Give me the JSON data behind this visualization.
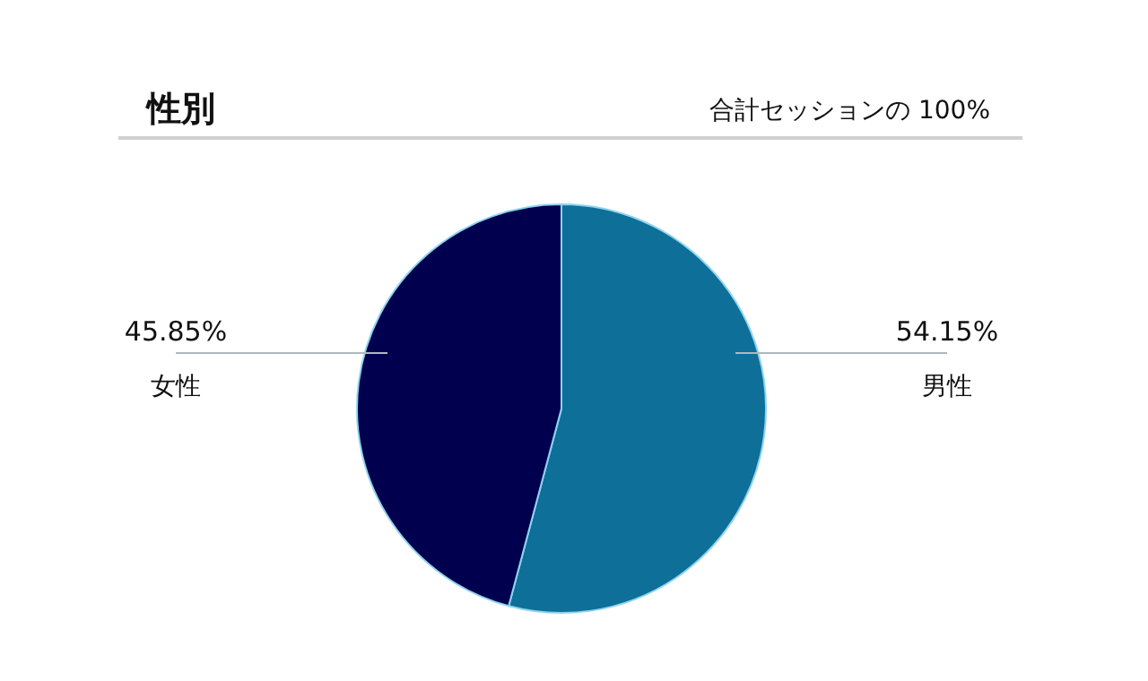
{
  "chart_data": {
    "type": "pie",
    "title": "性別",
    "subtitle": "合計セッションの 100%",
    "categories": [
      "男性",
      "女性"
    ],
    "values": [
      54.15,
      45.85
    ],
    "colors": [
      "#0e6f99",
      "#00004f"
    ],
    "value_labels": [
      "54.15%",
      "45.85%"
    ]
  }
}
